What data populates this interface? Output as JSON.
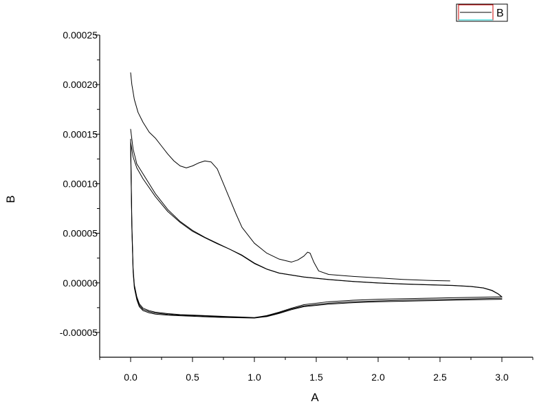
{
  "chart_data": {
    "type": "line",
    "title": "",
    "xlabel": "A",
    "ylabel": "B",
    "xlim": [
      -0.25,
      3.25
    ],
    "ylim": [
      -7.5e-05,
      0.00025
    ],
    "x_ticks": [
      0.0,
      0.5,
      1.0,
      1.5,
      2.0,
      2.5,
      3.0
    ],
    "x_tick_labels": [
      "0.0",
      "0.5",
      "1.0",
      "1.5",
      "2.0",
      "2.5",
      "3.0"
    ],
    "y_ticks": [
      -5e-05,
      0.0,
      5e-05,
      0.0001,
      0.00015,
      0.0002,
      0.00025
    ],
    "y_tick_labels": [
      "-0.00005",
      "0.00000",
      "0.00005",
      "0.00010",
      "0.00015",
      "0.00020",
      "0.00025"
    ],
    "grid": false,
    "legend": {
      "position": "top-right",
      "entries": [
        "B"
      ]
    },
    "series": [
      {
        "name": "B",
        "color": "#000000",
        "segments": [
          {
            "x": [
              0.0,
              0.01,
              0.03,
              0.06,
              0.1,
              0.15,
              0.2,
              0.25,
              0.3,
              0.35,
              0.4,
              0.45,
              0.5,
              0.55,
              0.6,
              0.65,
              0.7,
              0.75,
              0.8,
              0.85,
              0.9,
              1.0,
              1.1,
              1.2,
              1.3,
              1.35,
              1.4,
              1.43,
              1.45,
              1.48,
              1.52,
              1.6,
              1.8,
              2.0,
              2.2,
              2.4,
              2.58
            ],
            "y": [
              0.000212,
              0.0002,
              0.000185,
              0.000172,
              0.000162,
              0.000152,
              0.000146,
              0.000138,
              0.00013,
              0.000123,
              0.000118,
              0.000116,
              0.000118,
              0.000121,
              0.000123,
              0.000122,
              0.000115,
              0.0001,
              8.5e-05,
              7e-05,
              5.6e-05,
              4e-05,
              3e-05,
              2.4e-05,
              2.1e-05,
              2.3e-05,
              2.7e-05,
              3.1e-05,
              3e-05,
              2.1e-05,
              1.2e-05,
              8.5e-06,
              6.5e-06,
              5e-06,
              3.5e-06,
              2.5e-06,
              2e-06
            ]
          },
          {
            "x": [
              0.0,
              0.02,
              0.05,
              0.1,
              0.2,
              0.3,
              0.4,
              0.5,
              0.6,
              0.7,
              0.8,
              0.9,
              1.0,
              1.1,
              1.2,
              1.4,
              1.6,
              1.8,
              2.0,
              2.2,
              2.4,
              2.6,
              2.75,
              2.85,
              2.92,
              2.97,
              3.0
            ],
            "y": [
              0.000155,
              0.000135,
              0.00012,
              0.00011,
              9e-05,
              7.4e-05,
              6.2e-05,
              5.3e-05,
              4.6e-05,
              4e-05,
              3.4e-05,
              2.8e-05,
              2e-05,
              1.4e-05,
              1e-05,
              6e-06,
              3.5e-06,
              1.5e-06,
              0.0,
              -1e-06,
              -1.8e-06,
              -2.5e-06,
              -3.5e-06,
              -5e-06,
              -7.5e-06,
              -1.1e-05,
              -1.4e-05
            ]
          },
          {
            "x": [
              0.0,
              0.02,
              0.05,
              0.1,
              0.2,
              0.3,
              0.4,
              0.5,
              0.6,
              0.7,
              0.8,
              0.9,
              1.0,
              1.1,
              1.2,
              1.4,
              1.6,
              1.8,
              2.0,
              2.2,
              2.4,
              2.6,
              2.75,
              2.85,
              2.92,
              2.97,
              3.0
            ],
            "y": [
              0.000142,
              0.000127,
              0.000116,
              0.000105,
              8.7e-05,
              7.2e-05,
              6.1e-05,
              5.2e-05,
              4.55e-05,
              3.95e-05,
              3.4e-05,
              2.75e-05,
              1.95e-05,
              1.38e-05,
              9.8e-06,
              5.8e-06,
              3.3e-06,
              1.3e-06,
              -2e-07,
              -1.2e-06,
              -2e-06,
              -2.7e-06,
              -3.7e-06,
              -5.2e-06,
              -7.8e-06,
              -1.12e-05,
              -1.42e-05
            ]
          },
          {
            "x": [
              3.0,
              2.8,
              2.6,
              2.4,
              2.2,
              2.0,
              1.8,
              1.6,
              1.4,
              1.3,
              1.2,
              1.1,
              1.0,
              0.9,
              0.8,
              0.7,
              0.6,
              0.5,
              0.4,
              0.3,
              0.2,
              0.15,
              0.1,
              0.07,
              0.05,
              0.03,
              0.02,
              0.01,
              0.0
            ],
            "y": [
              -1.4e-05,
              -1.45e-05,
              -1.5e-05,
              -1.55e-05,
              -1.6e-05,
              -1.65e-05,
              -1.75e-05,
              -1.9e-05,
              -2.2e-05,
              -2.55e-05,
              -2.95e-05,
              -3.3e-05,
              -3.5e-05,
              -3.45e-05,
              -3.4e-05,
              -3.35e-05,
              -3.3e-05,
              -3.25e-05,
              -3.2e-05,
              -3.1e-05,
              -2.95e-05,
              -2.8e-05,
              -2.55e-05,
              -2.1e-05,
              -1.4e-05,
              -2e-06,
              1.5e-05,
              6e-05,
              0.000145
            ]
          },
          {
            "x": [
              3.0,
              2.8,
              2.6,
              2.4,
              2.2,
              2.0,
              1.8,
              1.6,
              1.4,
              1.3,
              1.2,
              1.1,
              1.0,
              0.9,
              0.8,
              0.7,
              0.6,
              0.5,
              0.4,
              0.3,
              0.2,
              0.15,
              0.1,
              0.07,
              0.05,
              0.03,
              0.02,
              0.01,
              0.0
            ],
            "y": [
              -1.55e-05,
              -1.6e-05,
              -1.65e-05,
              -1.7e-05,
              -1.75e-05,
              -1.82e-05,
              -1.9e-05,
              -2.05e-05,
              -2.32e-05,
              -2.62e-05,
              -3.02e-05,
              -3.35e-05,
              -3.52e-05,
              -3.48e-05,
              -3.44e-05,
              -3.4e-05,
              -3.35e-05,
              -3.3e-05,
              -3.25e-05,
              -3.18e-05,
              -3.05e-05,
              -2.9e-05,
              -2.68e-05,
              -2.25e-05,
              -1.55e-05,
              -3.5e-06,
              1.3e-05,
              5.8e-05,
              0.000142
            ]
          },
          {
            "x": [
              3.0,
              2.8,
              2.6,
              2.4,
              2.2,
              2.0,
              1.8,
              1.6,
              1.4,
              1.3,
              1.2,
              1.1,
              1.0,
              0.9,
              0.8,
              0.7,
              0.6,
              0.5,
              0.4,
              0.3,
              0.2,
              0.15,
              0.1,
              0.07,
              0.05,
              0.03,
              0.02,
              0.01,
              0.0
            ],
            "y": [
              -1.65e-05,
              -1.7e-05,
              -1.75e-05,
              -1.8e-05,
              -1.85e-05,
              -1.9e-05,
              -2e-05,
              -2.15e-05,
              -2.4e-05,
              -2.7e-05,
              -3.08e-05,
              -3.4e-05,
              -3.55e-05,
              -3.52e-05,
              -3.5e-05,
              -3.47e-05,
              -3.42e-05,
              -3.37e-05,
              -3.32e-05,
              -3.26e-05,
              -3.15e-05,
              -3.02e-05,
              -2.8e-05,
              -2.4e-05,
              -1.7e-05,
              -5e-06,
              1.1e-05,
              5.5e-05,
              0.000138
            ]
          }
        ]
      }
    ]
  }
}
